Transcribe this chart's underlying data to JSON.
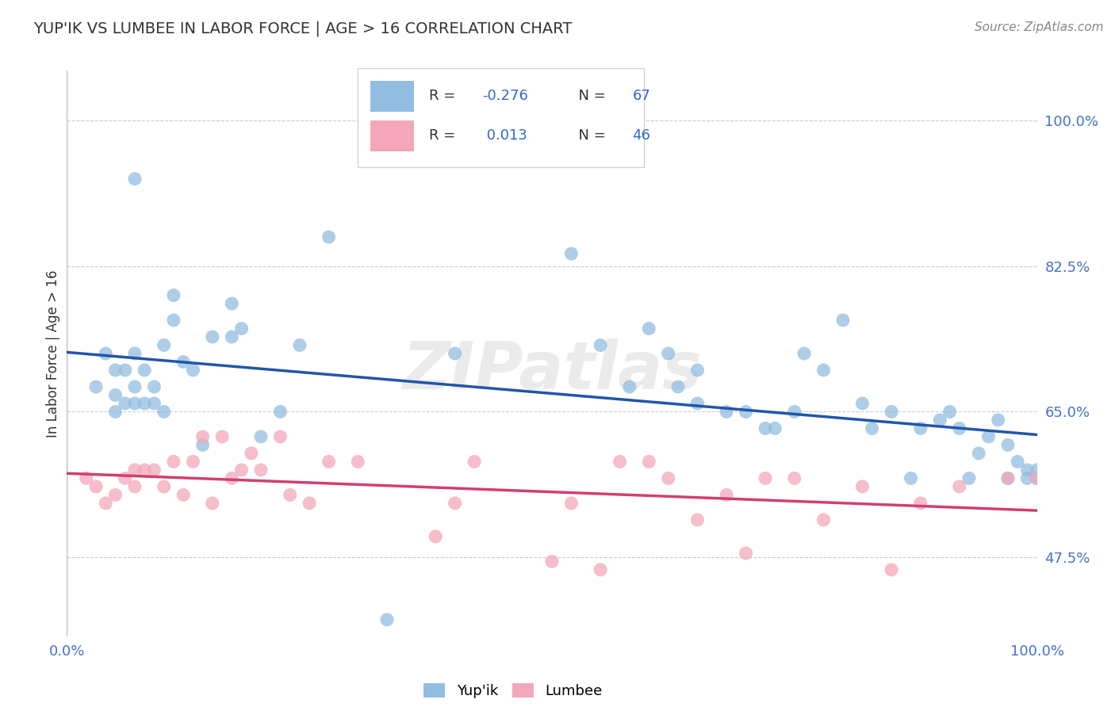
{
  "title": "YUP'IK VS LUMBEE IN LABOR FORCE | AGE > 16 CORRELATION CHART",
  "source": "Source: ZipAtlas.com",
  "ylabel": "In Labor Force | Age > 16",
  "xlim": [
    0.0,
    1.0
  ],
  "ylim": [
    0.38,
    1.06
  ],
  "yticks": [
    0.475,
    0.65,
    0.825,
    1.0
  ],
  "ytick_labels": [
    "47.5%",
    "65.0%",
    "82.5%",
    "100.0%"
  ],
  "xticks": [
    0.0,
    1.0
  ],
  "xtick_labels": [
    "0.0%",
    "100.0%"
  ],
  "blue_color": "#93bde0",
  "pink_color": "#f4a7b9",
  "blue_line_color": "#2255aa",
  "pink_line_color": "#d04070",
  "watermark": "ZIPatlas",
  "blue_scatter_x": [
    0.03,
    0.04,
    0.05,
    0.05,
    0.06,
    0.06,
    0.07,
    0.07,
    0.07,
    0.08,
    0.08,
    0.09,
    0.09,
    0.1,
    0.1,
    0.11,
    0.11,
    0.12,
    0.13,
    0.14,
    0.15,
    0.17,
    0.17,
    0.18,
    0.2,
    0.22,
    0.24,
    0.27,
    0.33,
    0.4,
    0.52,
    0.55,
    0.58,
    0.6,
    0.62,
    0.63,
    0.65,
    0.65,
    0.68,
    0.7,
    0.72,
    0.73,
    0.75,
    0.76,
    0.78,
    0.8,
    0.82,
    0.83,
    0.85,
    0.87,
    0.88,
    0.9,
    0.91,
    0.92,
    0.93,
    0.94,
    0.95,
    0.96,
    0.97,
    0.97,
    0.98,
    0.99,
    0.99,
    1.0,
    1.0,
    0.07,
    0.05
  ],
  "blue_scatter_y": [
    0.68,
    0.72,
    0.67,
    0.7,
    0.66,
    0.7,
    0.66,
    0.68,
    0.72,
    0.66,
    0.7,
    0.66,
    0.68,
    0.65,
    0.73,
    0.76,
    0.79,
    0.71,
    0.7,
    0.61,
    0.74,
    0.74,
    0.78,
    0.75,
    0.62,
    0.65,
    0.73,
    0.86,
    0.4,
    0.72,
    0.84,
    0.73,
    0.68,
    0.75,
    0.72,
    0.68,
    0.7,
    0.66,
    0.65,
    0.65,
    0.63,
    0.63,
    0.65,
    0.72,
    0.7,
    0.76,
    0.66,
    0.63,
    0.65,
    0.57,
    0.63,
    0.64,
    0.65,
    0.63,
    0.57,
    0.6,
    0.62,
    0.64,
    0.57,
    0.61,
    0.59,
    0.57,
    0.58,
    0.57,
    0.58,
    0.93,
    0.65
  ],
  "pink_scatter_x": [
    0.02,
    0.03,
    0.04,
    0.05,
    0.06,
    0.07,
    0.07,
    0.08,
    0.09,
    0.1,
    0.11,
    0.12,
    0.13,
    0.14,
    0.15,
    0.16,
    0.17,
    0.18,
    0.19,
    0.2,
    0.22,
    0.23,
    0.25,
    0.27,
    0.3,
    0.38,
    0.4,
    0.42,
    0.5,
    0.52,
    0.55,
    0.57,
    0.6,
    0.62,
    0.65,
    0.68,
    0.7,
    0.72,
    0.75,
    0.78,
    0.82,
    0.85,
    0.88,
    0.92,
    0.97,
    1.0
  ],
  "pink_scatter_y": [
    0.57,
    0.56,
    0.54,
    0.55,
    0.57,
    0.56,
    0.58,
    0.58,
    0.58,
    0.56,
    0.59,
    0.55,
    0.59,
    0.62,
    0.54,
    0.62,
    0.57,
    0.58,
    0.6,
    0.58,
    0.62,
    0.55,
    0.54,
    0.59,
    0.59,
    0.5,
    0.54,
    0.59,
    0.47,
    0.54,
    0.46,
    0.59,
    0.59,
    0.57,
    0.52,
    0.55,
    0.48,
    0.57,
    0.57,
    0.52,
    0.56,
    0.46,
    0.54,
    0.56,
    0.57,
    0.57
  ]
}
